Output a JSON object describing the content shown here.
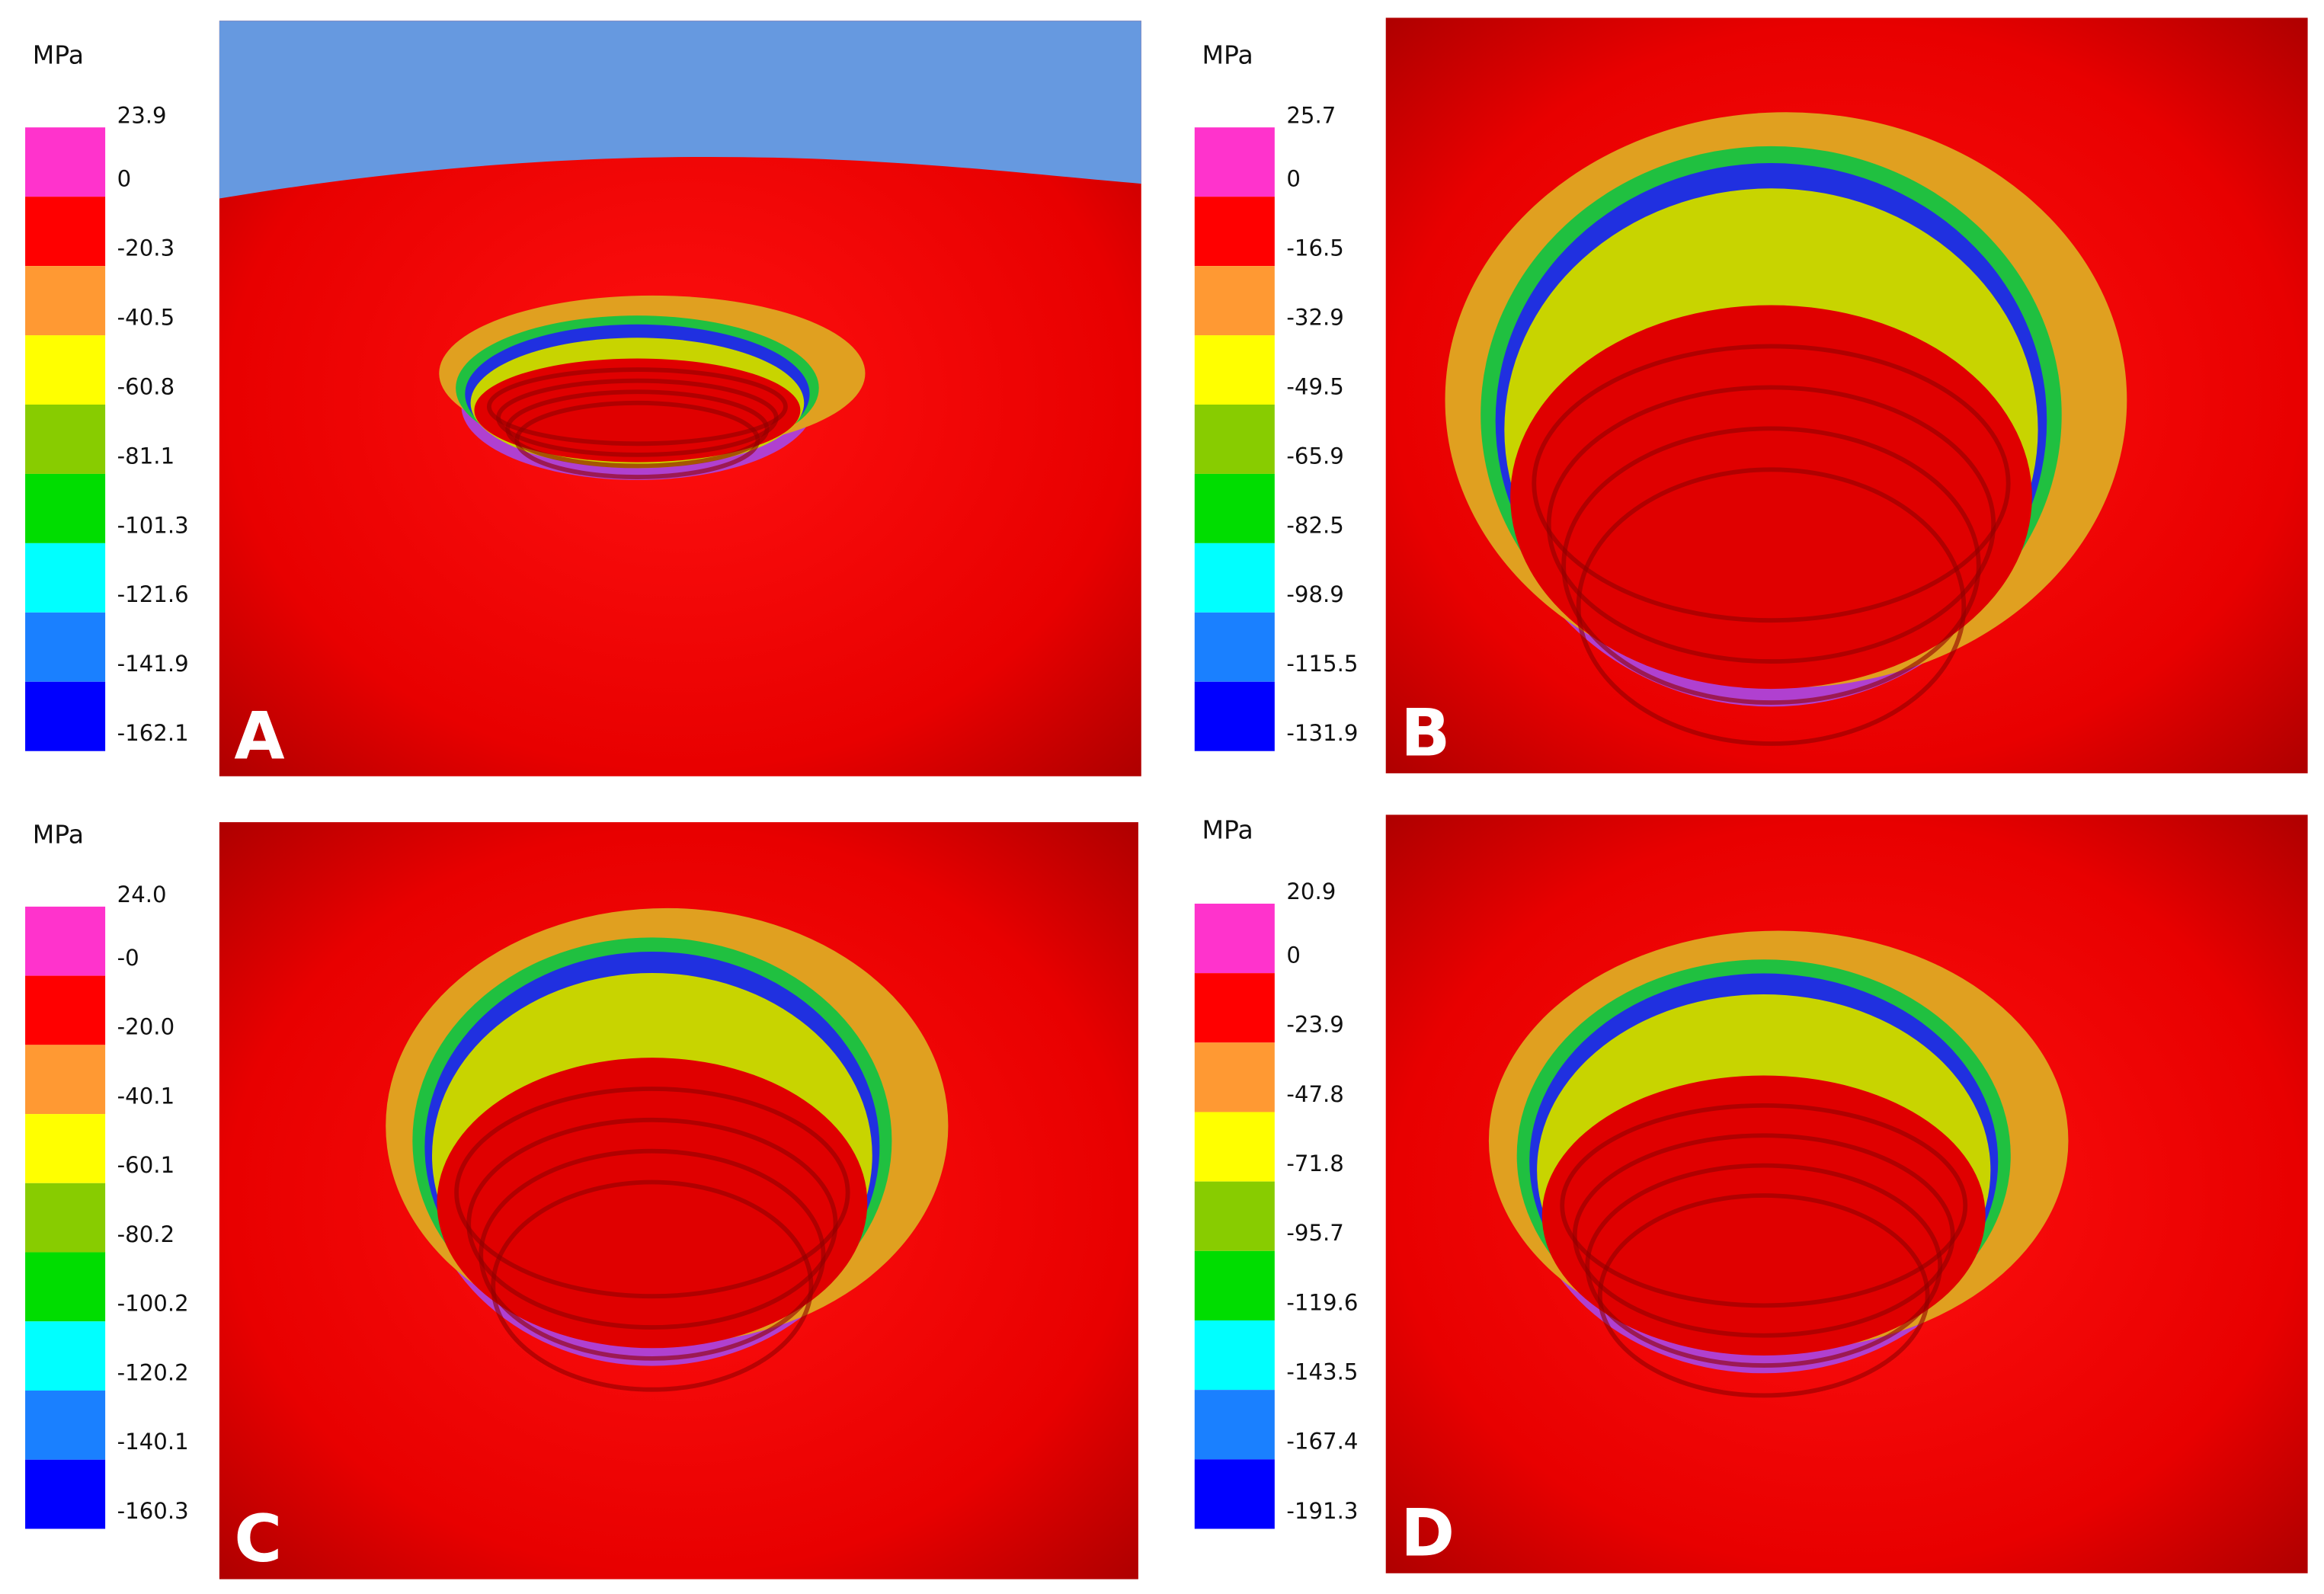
{
  "panels": [
    {
      "letter": "A",
      "unit": "MPa",
      "labels": [
        "23.9",
        "0",
        "-20.3",
        "-40.5",
        "-60.8",
        "-81.1",
        "-101.3",
        "-121.6",
        "-141.9",
        "-162.1"
      ]
    },
    {
      "letter": "B",
      "unit": "MPa",
      "labels": [
        "25.7",
        "0",
        "-16.5",
        "-32.9",
        "-49.5",
        "-65.9",
        "-82.5",
        "-98.9",
        "-115.5",
        "-131.9"
      ]
    },
    {
      "letter": "C",
      "unit": "MPa",
      "labels": [
        "24.0",
        "-0",
        "-20.0",
        "-40.1",
        "-60.1",
        "-80.2",
        "-100.2",
        "-120.2",
        "-140.1",
        "-160.3"
      ]
    },
    {
      "letter": "D",
      "unit": "MPa",
      "labels": [
        "20.9",
        "0",
        "-23.9",
        "-47.8",
        "-71.8",
        "-95.7",
        "-119.6",
        "-143.5",
        "-167.4",
        "-191.3"
      ]
    }
  ]
}
